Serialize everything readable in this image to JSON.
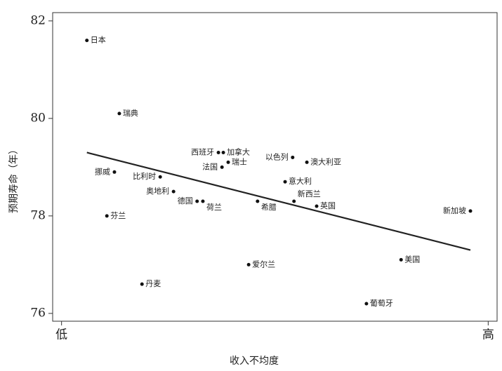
{
  "chart_data": {
    "type": "scatter",
    "xlabel": "收入不均度",
    "ylabel": "预期寿命（年）",
    "xlim": [
      0,
      100
    ],
    "ylim": [
      75.84,
      82.17
    ],
    "xticks": [
      {
        "value": 2,
        "label": "低"
      },
      {
        "value": 98,
        "label": "高"
      }
    ],
    "yticks": [
      76,
      78,
      80,
      82
    ],
    "color": "#111",
    "labels": [
      "日本",
      "瑞典",
      "挪威",
      "比利时",
      "奥地利",
      "芬兰",
      "德国",
      "荷兰",
      "西班牙",
      "加拿大",
      "法国",
      "瑞士",
      "以色列",
      "澳大利亚",
      "意大利",
      "新西兰",
      "希腊",
      "英国",
      "新加坡",
      "美国",
      "爱尔兰",
      "丹麦",
      "葡萄牙"
    ],
    "x": [
      7.7,
      15.0,
      13.9,
      24.2,
      27.2,
      12.2,
      32.5,
      33.8,
      37.3,
      38.4,
      38.1,
      39.5,
      54.0,
      57.2,
      52.3,
      54.3,
      46.1,
      59.4,
      94.0,
      78.4,
      44.1,
      20.1,
      70.6
    ],
    "values": [
      81.6,
      80.1,
      78.9,
      78.8,
      78.5,
      78.0,
      78.3,
      78.3,
      79.3,
      79.3,
      79.0,
      79.1,
      79.2,
      79.1,
      78.7,
      78.3,
      78.3,
      78.2,
      78.1,
      77.1,
      77.0,
      76.6,
      76.2
    ],
    "trend_line": {
      "x": [
        7.7,
        94.0
      ],
      "values": [
        79.3,
        77.3
      ],
      "color": "#222"
    }
  }
}
